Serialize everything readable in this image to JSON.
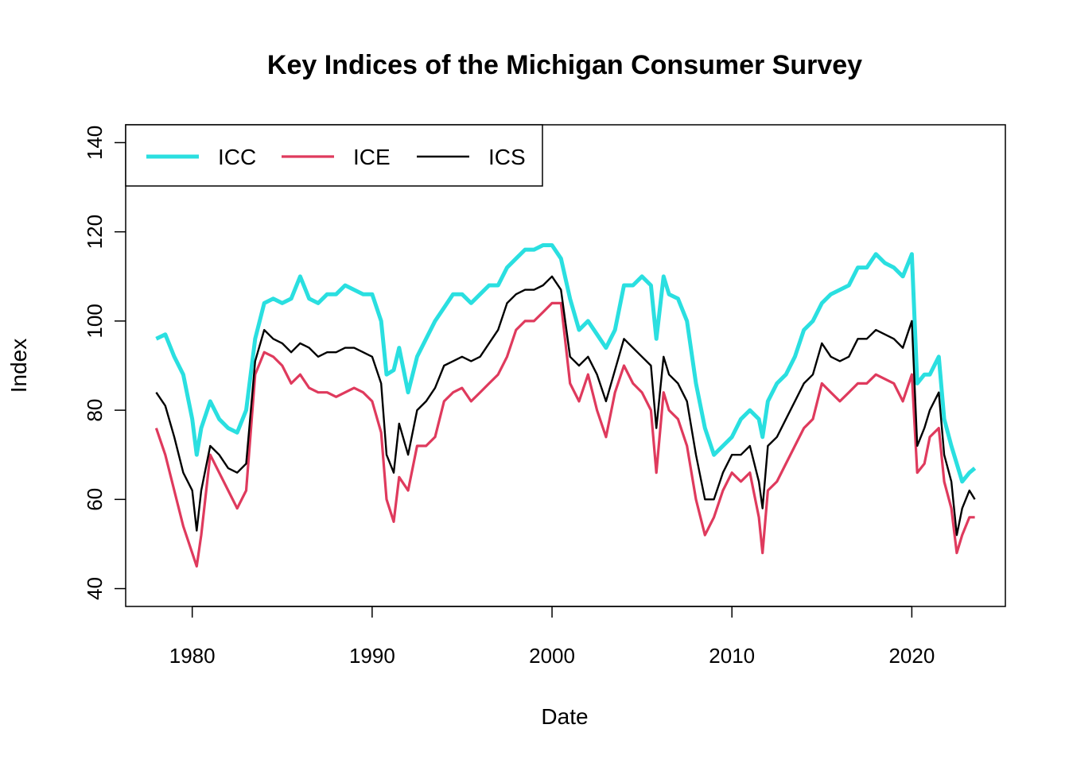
{
  "chart_data": {
    "type": "line",
    "title": "Key Indices of the Michigan Consumer Survey",
    "xlabel": "Date",
    "ylabel": "Index",
    "xlim": [
      1976.3,
      2025.2
    ],
    "ylim": [
      36,
      144
    ],
    "x_ticks": [
      1980,
      1990,
      2000,
      2010,
      2020
    ],
    "x_tick_labels": [
      "1980",
      "1990",
      "2000",
      "2010",
      "2020"
    ],
    "y_ticks": [
      40,
      60,
      80,
      100,
      120,
      140
    ],
    "y_tick_labels": [
      "40",
      "60",
      "80",
      "100",
      "120",
      "140"
    ],
    "grid": false,
    "legend_position": "top-left",
    "x": [
      1978.0,
      1978.5,
      1979.0,
      1979.5,
      1980.0,
      1980.25,
      1980.5,
      1981.0,
      1981.5,
      1982.0,
      1982.5,
      1983.0,
      1983.5,
      1984.0,
      1984.5,
      1985.0,
      1985.5,
      1986.0,
      1986.5,
      1987.0,
      1987.5,
      1988.0,
      1988.5,
      1989.0,
      1989.5,
      1990.0,
      1990.5,
      1990.8,
      1991.2,
      1991.5,
      1992.0,
      1992.5,
      1993.0,
      1993.5,
      1994.0,
      1994.5,
      1995.0,
      1995.5,
      1996.0,
      1996.5,
      1997.0,
      1997.5,
      1998.0,
      1998.5,
      1999.0,
      1999.5,
      2000.0,
      2000.5,
      2001.0,
      2001.5,
      2002.0,
      2002.5,
      2003.0,
      2003.5,
      2004.0,
      2004.5,
      2005.0,
      2005.5,
      2005.8,
      2006.2,
      2006.5,
      2007.0,
      2007.5,
      2008.0,
      2008.5,
      2009.0,
      2009.5,
      2010.0,
      2010.5,
      2011.0,
      2011.5,
      2011.7,
      2012.0,
      2012.5,
      2013.0,
      2013.5,
      2014.0,
      2014.5,
      2015.0,
      2015.5,
      2016.0,
      2016.5,
      2017.0,
      2017.5,
      2018.0,
      2018.5,
      2019.0,
      2019.5,
      2020.0,
      2020.3,
      2020.7,
      2021.0,
      2021.5,
      2021.8,
      2022.2,
      2022.5,
      2022.8,
      2023.2,
      2023.5
    ],
    "series": [
      {
        "name": "ICC",
        "color": "#2ADFE0",
        "values": [
          96,
          97,
          92,
          88,
          78,
          70,
          76,
          82,
          78,
          76,
          75,
          80,
          96,
          104,
          105,
          104,
          105,
          110,
          105,
          104,
          106,
          106,
          108,
          107,
          106,
          106,
          100,
          88,
          89,
          94,
          84,
          92,
          96,
          100,
          103,
          106,
          106,
          104,
          106,
          108,
          108,
          112,
          114,
          116,
          116,
          117,
          117,
          114,
          105,
          98,
          100,
          97,
          94,
          98,
          108,
          108,
          110,
          108,
          96,
          110,
          106,
          105,
          100,
          86,
          76,
          70,
          72,
          74,
          78,
          80,
          78,
          74,
          82,
          86,
          88,
          92,
          98,
          100,
          104,
          106,
          107,
          108,
          112,
          112,
          115,
          113,
          112,
          110,
          115,
          86,
          88,
          88,
          92,
          78,
          72,
          68,
          64,
          66,
          67
        ]
      },
      {
        "name": "ICE",
        "color": "#DF3A5D",
        "values": [
          76,
          70,
          62,
          54,
          48,
          45,
          52,
          70,
          66,
          62,
          58,
          62,
          88,
          93,
          92,
          90,
          86,
          88,
          85,
          84,
          84,
          83,
          84,
          85,
          84,
          82,
          75,
          60,
          55,
          65,
          62,
          72,
          72,
          74,
          82,
          84,
          85,
          82,
          84,
          86,
          88,
          92,
          98,
          100,
          100,
          102,
          104,
          104,
          86,
          82,
          88,
          80,
          74,
          84,
          90,
          86,
          84,
          80,
          66,
          84,
          80,
          78,
          72,
          60,
          52,
          56,
          62,
          66,
          64,
          66,
          56,
          48,
          62,
          64,
          68,
          72,
          76,
          78,
          86,
          84,
          82,
          84,
          86,
          86,
          88,
          87,
          86,
          82,
          88,
          66,
          68,
          74,
          76,
          64,
          58,
          48,
          52,
          56,
          56
        ]
      },
      {
        "name": "ICS",
        "color": "#000000",
        "values": [
          84,
          81,
          74,
          66,
          62,
          53,
          62,
          72,
          70,
          67,
          66,
          68,
          91,
          98,
          96,
          95,
          93,
          95,
          94,
          92,
          93,
          93,
          94,
          94,
          93,
          92,
          86,
          70,
          66,
          77,
          70,
          80,
          82,
          85,
          90,
          91,
          92,
          91,
          92,
          95,
          98,
          104,
          106,
          107,
          107,
          108,
          110,
          107,
          92,
          90,
          92,
          88,
          82,
          89,
          96,
          94,
          92,
          90,
          76,
          92,
          88,
          86,
          82,
          70,
          60,
          60,
          66,
          70,
          70,
          72,
          64,
          58,
          72,
          74,
          78,
          82,
          86,
          88,
          95,
          92,
          91,
          92,
          96,
          96,
          98,
          97,
          96,
          94,
          100,
          72,
          76,
          80,
          84,
          70,
          64,
          52,
          58,
          62,
          60
        ]
      }
    ],
    "legend": [
      {
        "label": "ICC",
        "color": "#2ADFE0"
      },
      {
        "label": "ICE",
        "color": "#DF3A5D"
      },
      {
        "label": "ICS",
        "color": "#000000"
      }
    ]
  }
}
